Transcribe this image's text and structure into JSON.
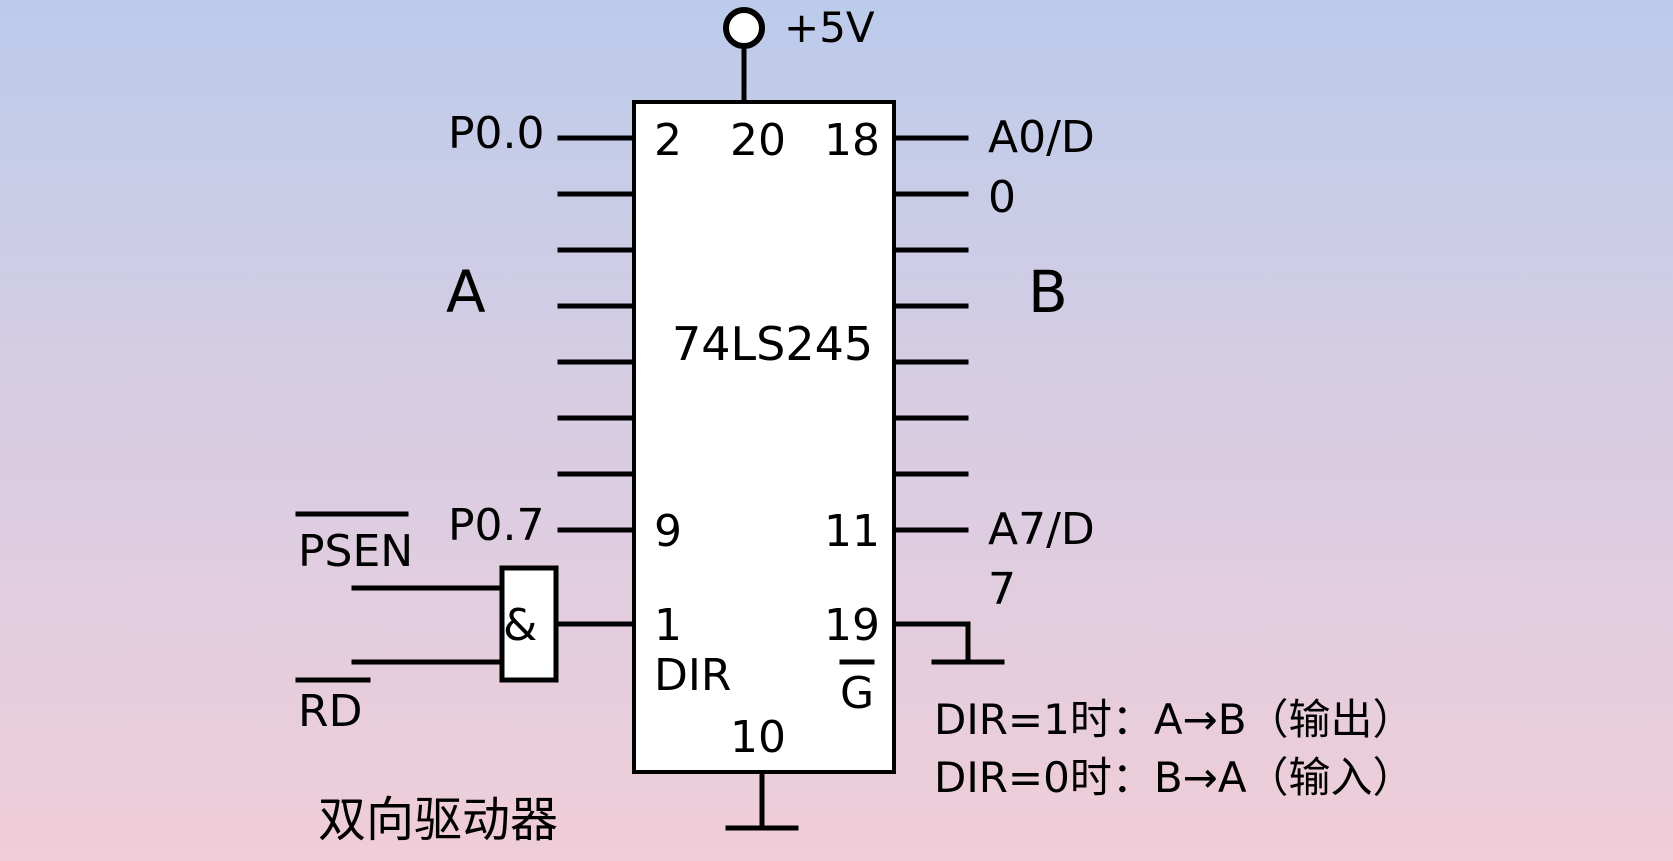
{
  "diagram": {
    "power_label": "+5V",
    "chip": {
      "name": "74LS245",
      "pin_top_left": "2",
      "pin_top_mid": "20",
      "pin_top_right": "18",
      "pin_9": "9",
      "pin_11": "11",
      "pin_1": "1",
      "pin_19": "19",
      "pin_10": "10",
      "dir_label": "DIR",
      "g_label": "G"
    },
    "left": {
      "port_label": "A",
      "pin_first": "P0.0",
      "pin_last": "P0.7"
    },
    "right": {
      "port_label": "B",
      "pin_first_line1": "A0/D",
      "pin_first_line2": "0",
      "pin_last_line1": "A7/D",
      "pin_last_line2": "7"
    },
    "gate": {
      "symbol": "&",
      "input_psen": "PSEN",
      "input_rd": "RD"
    },
    "notes": {
      "line1": "DIR=1时：A→B（输出）",
      "line2": "DIR=0时：B→A（输入）"
    },
    "caption": "双向驱动器"
  }
}
